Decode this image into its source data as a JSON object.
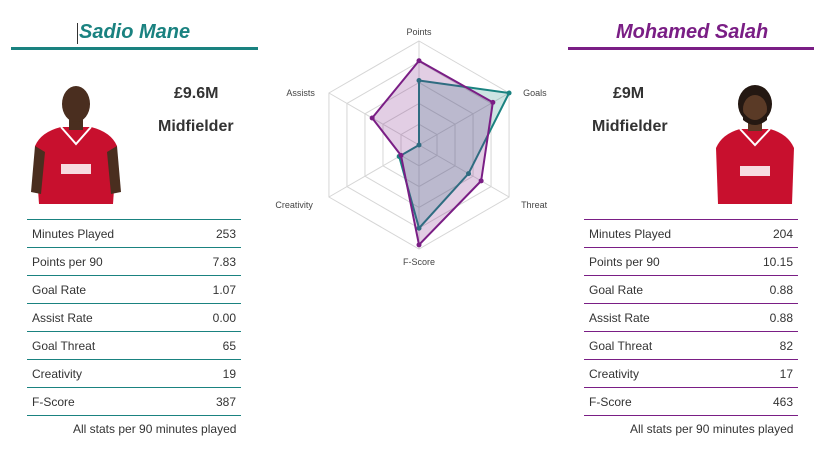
{
  "players": [
    {
      "name": "Sadio Mane",
      "price": "£9.6M",
      "position": "Midfielder",
      "color": "#1a8280",
      "stats": [
        {
          "label": "Minutes Played",
          "value": "253"
        },
        {
          "label": "Points per 90",
          "value": "7.83"
        },
        {
          "label": "Goal Rate",
          "value": "1.07"
        },
        {
          "label": "Assist Rate",
          "value": "0.00"
        },
        {
          "label": "Goal Threat",
          "value": "65"
        },
        {
          "label": "Creativity",
          "value": "19"
        },
        {
          "label": "F-Score",
          "value": "387"
        }
      ],
      "footnote": "All stats per 90 minutes played"
    },
    {
      "name": "Mohamed Salah",
      "price": "£9M",
      "position": "Midfielder",
      "color": "#7a1e85",
      "stats": [
        {
          "label": "Minutes Played",
          "value": "204"
        },
        {
          "label": "Points per 90",
          "value": "10.15"
        },
        {
          "label": "Goal Rate",
          "value": "0.88"
        },
        {
          "label": "Assist Rate",
          "value": "0.88"
        },
        {
          "label": "Goal Threat",
          "value": "82"
        },
        {
          "label": "Creativity",
          "value": "17"
        },
        {
          "label": "F-Score",
          "value": "463"
        }
      ],
      "footnote": "All stats per 90 minutes played"
    }
  ],
  "chart_data": {
    "type": "radar",
    "axes": [
      "Points",
      "Goals",
      "Threat",
      "F-Score",
      "Creativity",
      "Assists"
    ],
    "scale": [
      0,
      1
    ],
    "grid_levels": 5,
    "series": [
      {
        "name": "Sadio Mane",
        "color": "#1a8280",
        "values": [
          0.62,
          1.0,
          0.55,
          0.8,
          0.22,
          0.0
        ]
      },
      {
        "name": "Mohamed Salah",
        "color": "#7a1e85",
        "values": [
          0.81,
          0.82,
          0.69,
          0.96,
          0.2,
          0.52
        ]
      }
    ]
  }
}
